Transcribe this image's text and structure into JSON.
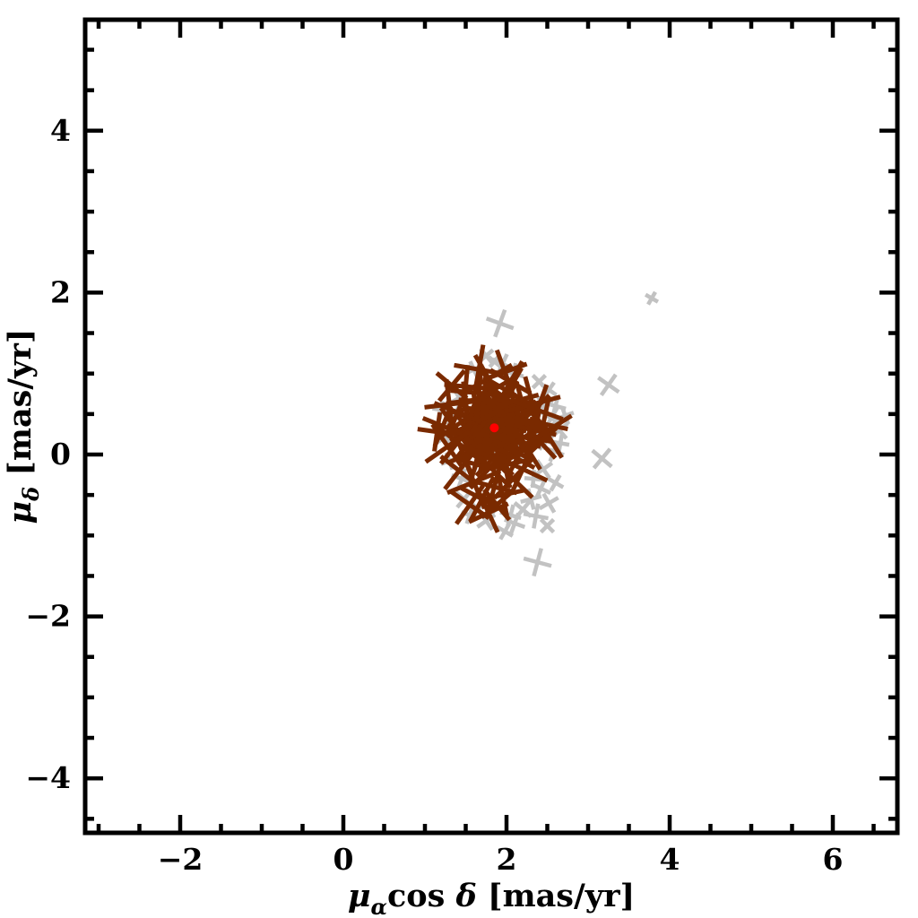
{
  "figure": {
    "background": "#ffffff",
    "frame_color": "#000000",
    "tick_label_color": "#000000"
  },
  "chart_data": {
    "type": "scatter",
    "title": "",
    "xlabel": "μ_α cos δ  [mas/yr]",
    "ylabel": "μ_δ  [mas/yr]",
    "xlabel_rich": [
      {
        "t": "μ",
        "style": "italic"
      },
      {
        "t": "α",
        "style": "sub"
      },
      {
        "t": "cos ",
        "style": "plain"
      },
      {
        "t": "δ",
        "style": "italic"
      },
      {
        "t": "  [mas/yr]",
        "style": "plain"
      }
    ],
    "ylabel_rich": [
      {
        "t": "μ",
        "style": "italic"
      },
      {
        "t": "δ",
        "style": "sub"
      },
      {
        "t": "  [mas/yr]",
        "style": "plain"
      }
    ],
    "xlim": [
      -3.16,
      6.79
    ],
    "ylim": [
      -4.67,
      5.37
    ],
    "xticks": [
      -2,
      0,
      2,
      4,
      6
    ],
    "yticks": [
      -4,
      -2,
      0,
      2,
      4
    ],
    "minor_tick_step": 0.5,
    "grid": false,
    "legend": null,
    "series": [
      {
        "name": "field_stars_gray_crosses",
        "marker": "rotated-cross",
        "color": "#c2c2c2",
        "stroke_px": 4.5,
        "points": [
          [
            1.92,
            1.62,
            20,
            16
          ],
          [
            3.78,
            1.93,
            30,
            8
          ],
          [
            3.25,
            0.86,
            35,
            14
          ],
          [
            3.17,
            -0.05,
            40,
            14
          ],
          [
            2.38,
            -1.33,
            15,
            16
          ],
          [
            2.42,
            -0.42,
            25,
            12
          ],
          [
            2.52,
            -0.6,
            60,
            12
          ],
          [
            2.36,
            -0.76,
            10,
            14
          ],
          [
            2.5,
            -0.88,
            45,
            10
          ],
          [
            2.3,
            -0.55,
            75,
            12
          ],
          [
            2.6,
            -0.35,
            30,
            10
          ],
          [
            2.45,
            -0.18,
            55,
            12
          ],
          [
            2.33,
            -0.3,
            5,
            10
          ],
          [
            2.2,
            -0.68,
            40,
            12
          ],
          [
            2.1,
            -0.85,
            20,
            12
          ],
          [
            2.55,
            0.45,
            30,
            14
          ],
          [
            2.65,
            0.3,
            50,
            12
          ],
          [
            2.6,
            0.6,
            15,
            12
          ],
          [
            2.72,
            0.48,
            70,
            10
          ],
          [
            2.5,
            0.18,
            40,
            14
          ],
          [
            2.58,
            0.04,
            20,
            12
          ],
          [
            2.45,
            0.6,
            60,
            12
          ],
          [
            2.52,
            0.8,
            35,
            10
          ],
          [
            2.66,
            0.14,
            10,
            10
          ],
          [
            2.4,
            0.9,
            45,
            10
          ],
          [
            1.95,
            1.12,
            25,
            12
          ],
          [
            1.75,
            1.22,
            50,
            10
          ],
          [
            2.08,
            1.0,
            15,
            12
          ],
          [
            1.6,
            1.05,
            65,
            10
          ],
          [
            1.85,
            1.15,
            40,
            8
          ],
          [
            1.35,
            0.48,
            30,
            12
          ],
          [
            1.25,
            0.22,
            55,
            12
          ],
          [
            1.45,
            -0.3,
            20,
            12
          ],
          [
            1.3,
            -0.08,
            70,
            10
          ],
          [
            1.48,
            -0.55,
            40,
            12
          ],
          [
            1.2,
            0.55,
            10,
            10
          ],
          [
            1.42,
            0.7,
            60,
            10
          ],
          [
            1.9,
            -0.62,
            35,
            12
          ],
          [
            2.05,
            -0.75,
            15,
            12
          ],
          [
            1.75,
            -0.82,
            55,
            12
          ],
          [
            1.98,
            -0.95,
            30,
            10
          ],
          [
            1.65,
            -0.68,
            45,
            10
          ],
          [
            1.55,
            -0.75,
            20,
            10
          ],
          [
            1.85,
            0.35,
            25,
            16
          ],
          [
            1.95,
            0.5,
            50,
            14
          ],
          [
            1.7,
            0.45,
            15,
            14
          ],
          [
            2.05,
            0.25,
            65,
            14
          ],
          [
            1.8,
            0.1,
            40,
            14
          ],
          [
            2.1,
            0.55,
            30,
            12
          ],
          [
            1.6,
            0.3,
            10,
            12
          ],
          [
            2.15,
            0.05,
            75,
            12
          ]
        ]
      },
      {
        "name": "cluster_members_dark_red_crosses",
        "marker": "rotated-cross",
        "color": "#7a2a00",
        "stroke_px": 5,
        "points": [
          [
            1.85,
            0.33,
            12,
            16
          ],
          [
            1.8,
            0.4,
            47,
            20
          ],
          [
            1.92,
            0.28,
            75,
            14
          ],
          [
            1.75,
            0.3,
            30,
            22
          ],
          [
            1.95,
            0.4,
            60,
            18
          ],
          [
            1.83,
            0.22,
            5,
            24
          ],
          [
            1.7,
            0.38,
            83,
            15
          ],
          [
            2.0,
            0.3,
            22,
            21
          ],
          [
            1.88,
            0.45,
            55,
            19
          ],
          [
            1.78,
            0.18,
            38,
            23
          ],
          [
            1.98,
            0.2,
            68,
            13
          ],
          [
            1.65,
            0.25,
            15,
            17
          ],
          [
            1.9,
            0.36,
            44,
            25
          ],
          [
            1.72,
            0.27,
            78,
            20
          ],
          [
            1.86,
            0.15,
            28,
            16
          ],
          [
            1.94,
            0.48,
            58,
            22
          ],
          [
            1.68,
            0.33,
            8,
            18
          ],
          [
            1.82,
            0.5,
            35,
            14
          ],
          [
            2.02,
            0.38,
            65,
            24
          ],
          [
            1.77,
            0.42,
            20,
            19
          ],
          [
            2.05,
            0.33,
            12,
            18
          ],
          [
            2.04,
            0.45,
            47,
            22
          ],
          [
            1.99,
            0.52,
            75,
            16
          ],
          [
            1.92,
            0.56,
            30,
            24
          ],
          [
            1.85,
            0.58,
            60,
            20
          ],
          [
            1.76,
            0.55,
            5,
            26
          ],
          [
            1.69,
            0.5,
            83,
            17
          ],
          [
            1.66,
            0.42,
            22,
            23
          ],
          [
            1.63,
            0.33,
            55,
            21
          ],
          [
            1.66,
            0.22,
            38,
            25
          ],
          [
            1.7,
            0.15,
            68,
            15
          ],
          [
            1.78,
            0.1,
            15,
            19
          ],
          [
            1.85,
            0.08,
            44,
            27
          ],
          [
            1.93,
            0.11,
            78,
            22
          ],
          [
            2.0,
            0.15,
            28,
            18
          ],
          [
            2.03,
            0.24,
            58,
            24
          ],
          [
            1.9,
            0.5,
            8,
            20
          ],
          [
            1.73,
            0.45,
            35,
            16
          ],
          [
            1.74,
            0.2,
            65,
            26
          ],
          [
            1.96,
            0.47,
            20,
            21
          ],
          [
            2.2,
            0.33,
            12,
            20
          ],
          [
            2.17,
            0.48,
            47,
            24
          ],
          [
            2.1,
            0.6,
            75,
            18
          ],
          [
            1.99,
            0.66,
            30,
            26
          ],
          [
            1.86,
            0.68,
            60,
            22
          ],
          [
            1.72,
            0.65,
            5,
            28
          ],
          [
            1.62,
            0.57,
            83,
            19
          ],
          [
            1.54,
            0.45,
            22,
            25
          ],
          [
            1.52,
            0.31,
            55,
            23
          ],
          [
            1.56,
            0.18,
            38,
            27
          ],
          [
            1.62,
            0.06,
            68,
            17
          ],
          [
            1.73,
            -0.01,
            15,
            21
          ],
          [
            1.85,
            -0.03,
            44,
            29
          ],
          [
            1.97,
            0.0,
            78,
            24
          ],
          [
            2.07,
            0.06,
            28,
            20
          ],
          [
            2.15,
            0.17,
            58,
            26
          ],
          [
            2.12,
            0.4,
            8,
            22
          ],
          [
            1.8,
            0.62,
            35,
            18
          ],
          [
            1.58,
            0.38,
            65,
            28
          ],
          [
            1.68,
            0.02,
            20,
            23
          ],
          [
            2.35,
            0.3,
            12,
            24
          ],
          [
            2.3,
            0.52,
            47,
            28
          ],
          [
            2.18,
            0.68,
            75,
            20
          ],
          [
            2.02,
            0.78,
            30,
            30
          ],
          [
            1.84,
            0.8,
            60,
            24
          ],
          [
            1.66,
            0.76,
            5,
            32
          ],
          [
            1.5,
            0.66,
            83,
            22
          ],
          [
            1.4,
            0.52,
            22,
            28
          ],
          [
            1.36,
            0.34,
            55,
            26
          ],
          [
            1.4,
            0.15,
            38,
            30
          ],
          [
            1.48,
            -0.02,
            68,
            20
          ],
          [
            1.62,
            -0.12,
            15,
            24
          ],
          [
            1.8,
            -0.16,
            44,
            32
          ],
          [
            1.98,
            -0.13,
            78,
            26
          ],
          [
            2.13,
            -0.05,
            28,
            22
          ],
          [
            2.25,
            0.08,
            58,
            28
          ],
          [
            2.28,
            0.2,
            8,
            24
          ],
          [
            1.45,
            0.24,
            35,
            20
          ],
          [
            2.45,
            0.38,
            12,
            28
          ],
          [
            2.42,
            0.15,
            47,
            24
          ],
          [
            2.32,
            0.62,
            75,
            32
          ],
          [
            2.05,
            0.9,
            30,
            26
          ],
          [
            1.78,
            0.94,
            60,
            30
          ],
          [
            1.5,
            0.84,
            5,
            24
          ],
          [
            1.3,
            0.62,
            83,
            28
          ],
          [
            1.22,
            0.35,
            22,
            24
          ],
          [
            1.28,
            0.1,
            55,
            30
          ],
          [
            1.42,
            -0.2,
            38,
            26
          ],
          [
            1.6,
            -0.34,
            68,
            32
          ],
          [
            1.85,
            -0.4,
            15,
            26
          ],
          [
            2.08,
            -0.3,
            44,
            30
          ],
          [
            1.95,
            -0.5,
            78,
            24
          ],
          [
            1.7,
            -0.55,
            28,
            28
          ],
          [
            2.48,
            0.28,
            58,
            34
          ],
          [
            1.15,
            0.28,
            8,
            22
          ],
          [
            1.55,
            -0.62,
            35,
            26
          ],
          [
            1.78,
            -0.72,
            65,
            24
          ],
          [
            2.38,
            0.55,
            20,
            30
          ],
          [
            1.33,
            0.85,
            40,
            22
          ],
          [
            1.98,
            1.02,
            70,
            26
          ],
          [
            1.66,
            1.05,
            10,
            28
          ],
          [
            1.88,
            -0.62,
            50,
            22
          ],
          [
            2.2,
            -0.18,
            25,
            30
          ]
        ]
      },
      {
        "name": "mean_proper_motion_red_dot",
        "marker": "dot",
        "color": "#ff0000",
        "radius_px": 5,
        "points": [
          [
            1.85,
            0.33
          ]
        ]
      }
    ]
  }
}
